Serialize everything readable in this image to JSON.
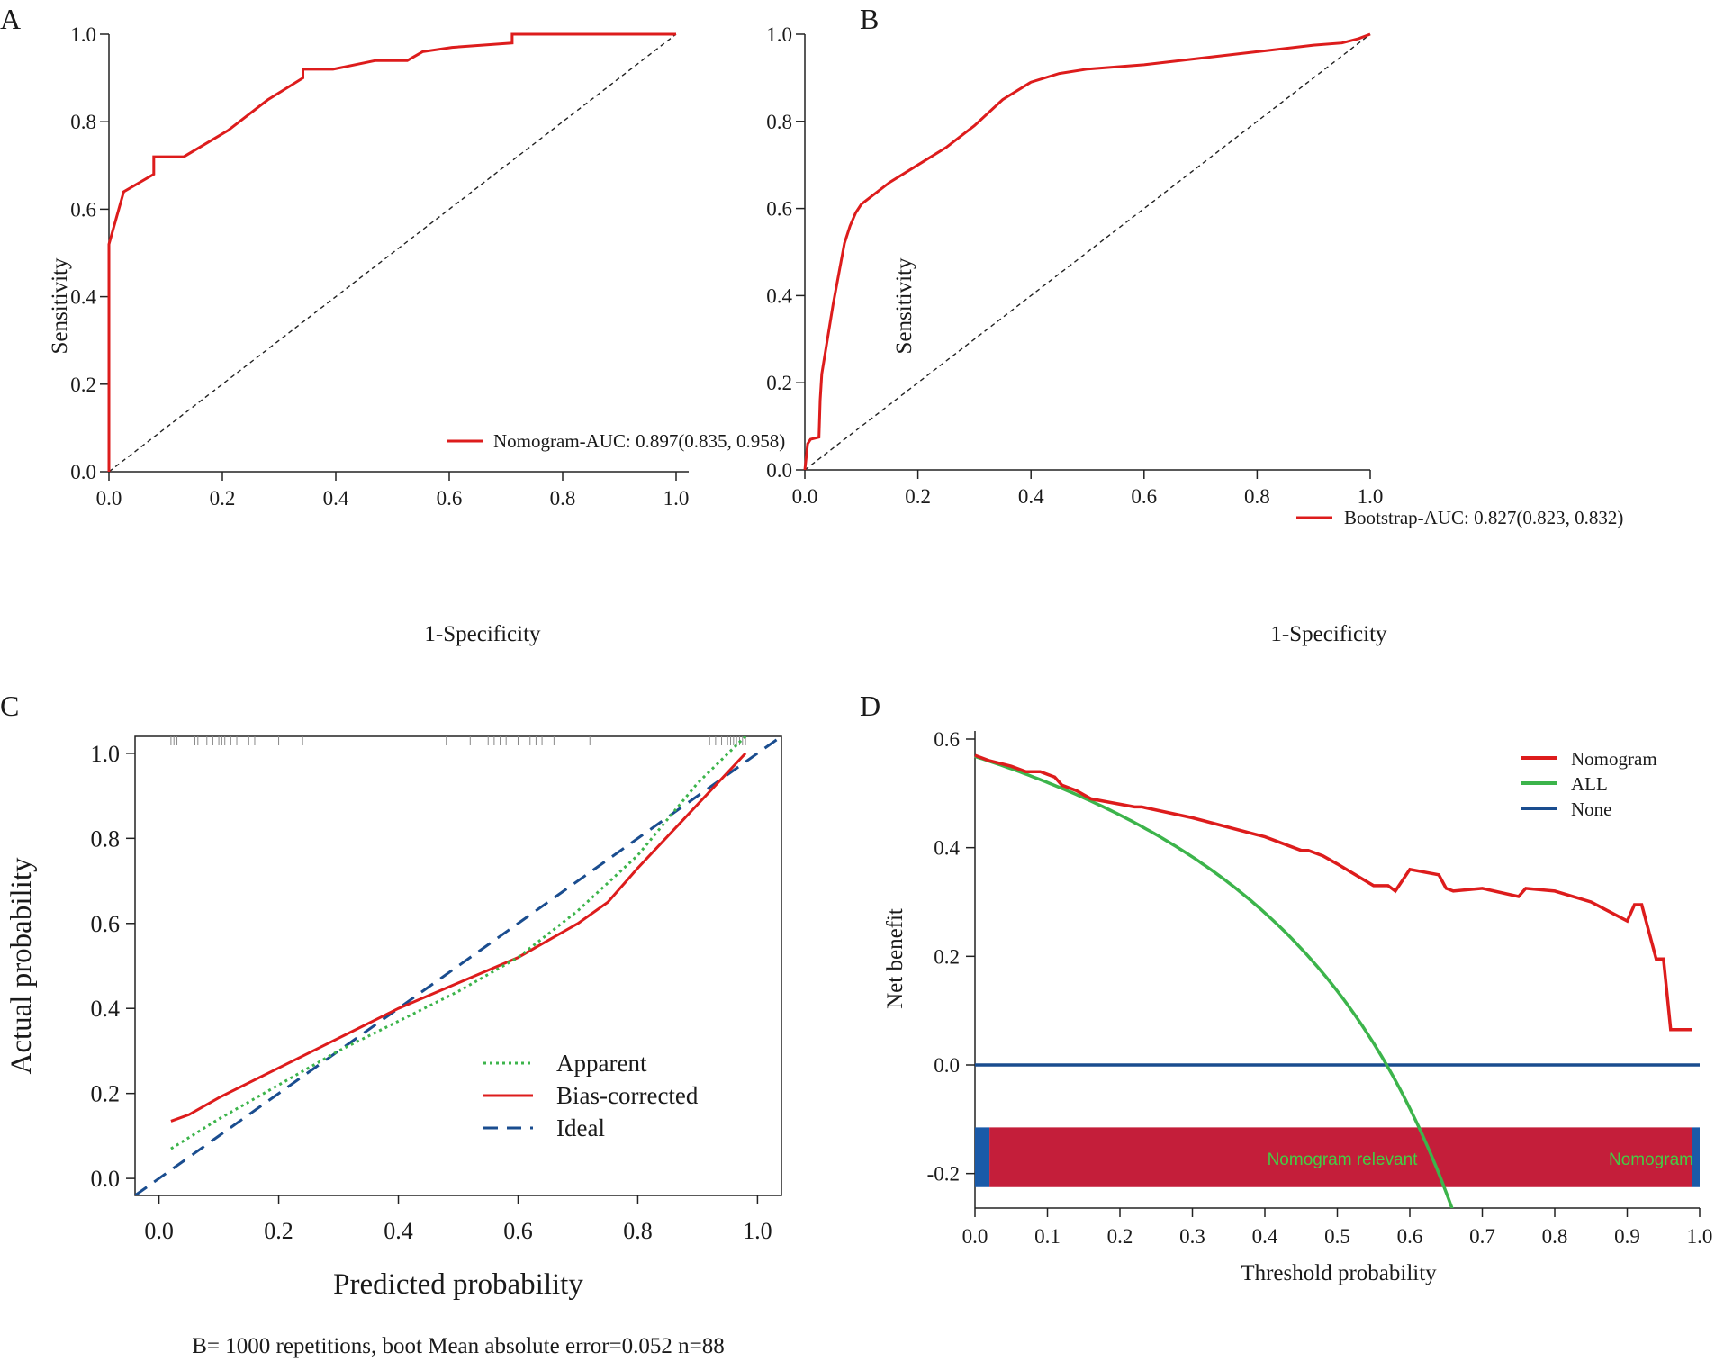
{
  "colors": {
    "red": "#dd1c1c",
    "green": "#3cb44b",
    "blue": "#1a4d8f",
    "band_red": "#c41e3a",
    "band_blue": "#1a5aa8",
    "text_green": "#44cc44",
    "axis": "#1a1a1a"
  },
  "chart_data": [
    {
      "panel": "A",
      "type": "line",
      "xlabel": "1-Specificity",
      "ylabel": "Sensitivity",
      "xlim": [
        0,
        1
      ],
      "ylim": [
        0,
        1
      ],
      "xticks": [
        "0.0",
        "0.2",
        "0.4",
        "0.6",
        "0.8",
        "1.0"
      ],
      "yticks": [
        "0.0",
        "0.2",
        "0.4",
        "0.6",
        "0.8",
        "1.0"
      ],
      "legend": "Nomogram-AUC: 0.897(0.835, 0.958)",
      "legend_position": "lower-right",
      "diagonal": true,
      "series": [
        {
          "name": "Nomogram",
          "x": [
            0,
            0,
            0.026,
            0.079,
            0.079,
            0.132,
            0.21,
            0.28,
            0.342,
            0.342,
            0.395,
            0.47,
            0.526,
            0.553,
            0.605,
            0.711,
            0.711,
            1.0
          ],
          "y": [
            0,
            0.52,
            0.64,
            0.68,
            0.72,
            0.72,
            0.78,
            0.85,
            0.9,
            0.92,
            0.92,
            0.94,
            0.94,
            0.96,
            0.97,
            0.98,
            1.0,
            1.0
          ]
        }
      ]
    },
    {
      "panel": "B",
      "type": "line",
      "xlabel": "1-Specificity",
      "ylabel": "Sensitivity",
      "xlim": [
        0,
        1
      ],
      "ylim": [
        0,
        1
      ],
      "xticks": [
        "0.0",
        "0.2",
        "0.4",
        "0.6",
        "0.8",
        "1.0"
      ],
      "yticks": [
        "0.0",
        "0.2",
        "0.4",
        "0.6",
        "0.8",
        "1.0"
      ],
      "legend": "Bootstrap-AUC: 0.827(0.823, 0.832)",
      "legend_position": "lower-right",
      "diagonal": true,
      "series": [
        {
          "name": "Bootstrap",
          "x": [
            0,
            0.005,
            0.01,
            0.025,
            0.027,
            0.03,
            0.04,
            0.05,
            0.06,
            0.07,
            0.08,
            0.09,
            0.1,
            0.12,
            0.15,
            0.2,
            0.25,
            0.3,
            0.35,
            0.4,
            0.45,
            0.5,
            0.6,
            0.7,
            0.8,
            0.9,
            0.95,
            0.98,
            1.0
          ],
          "y": [
            0,
            0.06,
            0.07,
            0.075,
            0.16,
            0.22,
            0.3,
            0.38,
            0.45,
            0.52,
            0.56,
            0.59,
            0.61,
            0.63,
            0.66,
            0.7,
            0.74,
            0.79,
            0.85,
            0.89,
            0.91,
            0.92,
            0.93,
            0.945,
            0.96,
            0.975,
            0.98,
            0.99,
            1.0
          ]
        }
      ]
    },
    {
      "panel": "C",
      "type": "line",
      "title": "",
      "xlabel": "Predicted probability",
      "ylabel": "Actual probability",
      "subtitle": "B= 1000 repetitions, boot Mean absolute error=0.052 n=88",
      "xlim": [
        -0.04,
        1.04
      ],
      "ylim": [
        -0.04,
        1.04
      ],
      "xticks": [
        "0.0",
        "0.2",
        "0.4",
        "0.6",
        "0.8",
        "1.0"
      ],
      "yticks": [
        "0.0",
        "0.2",
        "0.4",
        "0.6",
        "0.8",
        "1.0"
      ],
      "legend_position": "bottom-right",
      "series": [
        {
          "name": "Apparent",
          "style": "dotted",
          "x": [
            0.02,
            0.1,
            0.2,
            0.3,
            0.4,
            0.5,
            0.6,
            0.7,
            0.8,
            0.9,
            0.98
          ],
          "y": [
            0.07,
            0.14,
            0.22,
            0.3,
            0.37,
            0.44,
            0.52,
            0.63,
            0.76,
            0.93,
            1.04
          ]
        },
        {
          "name": "Bias-corrected",
          "style": "solid",
          "x": [
            0.02,
            0.05,
            0.1,
            0.2,
            0.3,
            0.4,
            0.5,
            0.6,
            0.7,
            0.75,
            0.8,
            0.9,
            0.98
          ],
          "y": [
            0.135,
            0.15,
            0.19,
            0.26,
            0.33,
            0.4,
            0.46,
            0.52,
            0.6,
            0.65,
            0.73,
            0.88,
            1.0
          ]
        },
        {
          "name": "Ideal",
          "style": "dashed",
          "x": [
            -0.04,
            1.04
          ],
          "y": [
            -0.04,
            1.04
          ]
        }
      ],
      "rug_ticks": [
        0.02,
        0.025,
        0.03,
        0.06,
        0.065,
        0.08,
        0.09,
        0.1,
        0.105,
        0.11,
        0.12,
        0.13,
        0.15,
        0.16,
        0.2,
        0.24,
        0.48,
        0.52,
        0.55,
        0.56,
        0.57,
        0.58,
        0.6,
        0.62,
        0.63,
        0.64,
        0.66,
        0.72,
        0.92,
        0.93,
        0.94,
        0.95,
        0.955,
        0.96,
        0.965,
        0.97,
        0.975,
        0.98
      ]
    },
    {
      "panel": "D",
      "type": "line",
      "xlabel": "Threshold probability",
      "ylabel": "Net benefit",
      "xlim": [
        0,
        1
      ],
      "ylim": [
        -0.27,
        0.6
      ],
      "xticks": [
        "0.0",
        "0.1",
        "0.2",
        "0.3",
        "0.4",
        "0.5",
        "0.6",
        "0.7",
        "0.8",
        "0.9",
        "1.0"
      ],
      "yticks": [
        "-0.2",
        "0.0",
        "0.2",
        "0.4",
        "0.6"
      ],
      "legend_position": "top-right",
      "series": [
        {
          "name": "Nomogram",
          "x": [
            0,
            0.02,
            0.05,
            0.07,
            0.09,
            0.11,
            0.12,
            0.14,
            0.16,
            0.2,
            0.22,
            0.23,
            0.3,
            0.4,
            0.45,
            0.46,
            0.48,
            0.5,
            0.55,
            0.57,
            0.58,
            0.6,
            0.64,
            0.65,
            0.66,
            0.7,
            0.75,
            0.76,
            0.8,
            0.85,
            0.9,
            0.91,
            0.92,
            0.94,
            0.95,
            0.96,
            0.97,
            0.99
          ],
          "y": [
            0.57,
            0.56,
            0.55,
            0.54,
            0.54,
            0.53,
            0.515,
            0.505,
            0.49,
            0.48,
            0.475,
            0.475,
            0.455,
            0.42,
            0.395,
            0.395,
            0.385,
            0.37,
            0.33,
            0.33,
            0.32,
            0.36,
            0.35,
            0.325,
            0.32,
            0.325,
            0.31,
            0.325,
            0.32,
            0.3,
            0.265,
            0.295,
            0.295,
            0.195,
            0.195,
            0.065,
            0.065,
            0.065
          ]
        },
        {
          "name": "ALL",
          "prevalence": 0.568,
          "x_from": 0,
          "x_to": 1
        },
        {
          "name": "None",
          "x": [
            0,
            1
          ],
          "y": [
            0,
            0
          ]
        }
      ],
      "band": {
        "y_top": -0.115,
        "y_bottom": -0.225,
        "label": "Nomogram relevant",
        "label_right": "Nomogram"
      }
    }
  ],
  "panel_labels": [
    "A",
    "B",
    "C",
    "D"
  ]
}
